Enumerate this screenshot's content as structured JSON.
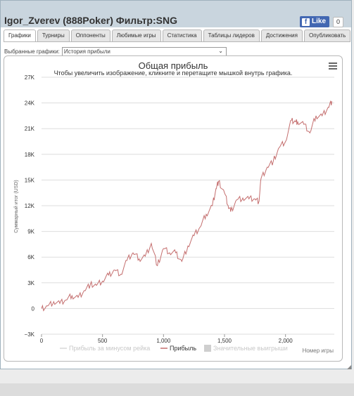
{
  "window": {
    "title": "Igor_Zverev (888Poker) Фильтр:SNG",
    "fb_like": "Like",
    "fb_count": "0"
  },
  "tabs": [
    {
      "label": "Графики",
      "active": true
    },
    {
      "label": "Турниры"
    },
    {
      "label": "Оппоненты"
    },
    {
      "label": "Любимые игры"
    },
    {
      "label": "Статистика"
    },
    {
      "label": "Таблицы лидеров"
    },
    {
      "label": "Достижения"
    },
    {
      "label": "Опубликовать"
    }
  ],
  "selector": {
    "label": "Выбранные графики:",
    "value": "История прибыли"
  },
  "chart": {
    "title": "Общая прибыль",
    "subtitle": "Чтобы увеличить изображение, кликните и перетащите мышкой внутрь графика.",
    "ylabel": "Суммарный итог (USD)",
    "xlabel": "Номер игры",
    "legend": [
      "Прибыль за минусом рейка",
      "Прибыль",
      "Значительные выигрыши"
    ]
  },
  "chart_data": {
    "type": "line",
    "title": "Общая прибыль",
    "xlabel": "Номер игры",
    "ylabel": "Суммарный итог (USD)",
    "xlim": [
      0,
      2400
    ],
    "ylim": [
      -3000,
      27000
    ],
    "x_ticks": [
      0,
      500,
      1000,
      1500,
      2000
    ],
    "x_tick_labels": [
      "0",
      "500",
      "1,000",
      "1,500",
      "2,000"
    ],
    "y_ticks": [
      -3000,
      0,
      3000,
      6000,
      9000,
      12000,
      15000,
      18000,
      21000,
      24000,
      27000
    ],
    "y_tick_labels": [
      "−3K",
      "0",
      "3K",
      "6K",
      "9K",
      "12K",
      "15K",
      "18K",
      "21K",
      "24K",
      "27K"
    ],
    "grid": true,
    "legend_position": "bottom",
    "series": [
      {
        "name": "Прибыль",
        "color": "#c46e6e",
        "x": [
          0,
          50,
          100,
          150,
          200,
          250,
          300,
          350,
          400,
          450,
          500,
          550,
          600,
          650,
          700,
          750,
          800,
          850,
          900,
          950,
          1000,
          1050,
          1100,
          1150,
          1200,
          1250,
          1300,
          1350,
          1400,
          1430,
          1450,
          1500,
          1530,
          1550,
          1600,
          1650,
          1700,
          1750,
          1780,
          1800,
          1850,
          1900,
          1950,
          2000,
          2050,
          2080,
          2100,
          2150,
          2200,
          2250,
          2300,
          2350,
          2380
        ],
        "y": [
          0,
          300,
          800,
          600,
          1000,
          1500,
          1300,
          2100,
          2800,
          2700,
          3200,
          3900,
          4500,
          4000,
          5600,
          6500,
          5800,
          6100,
          7600,
          5000,
          7000,
          6500,
          6500,
          5500,
          7300,
          8500,
          9500,
          11000,
          12000,
          14000,
          14800,
          13500,
          12000,
          11300,
          12700,
          12900,
          12800,
          12800,
          12400,
          15200,
          16500,
          17200,
          18800,
          19500,
          22000,
          21800,
          21800,
          21500,
          20500,
          22500,
          22500,
          23500,
          24200
        ]
      },
      {
        "name": "Прибыль за минусом рейка",
        "color": "#d8d8d8",
        "x": [],
        "y": []
      },
      {
        "name": "Значительные выигрыши",
        "color": "#cfcfcf",
        "x": [],
        "y": []
      }
    ]
  }
}
